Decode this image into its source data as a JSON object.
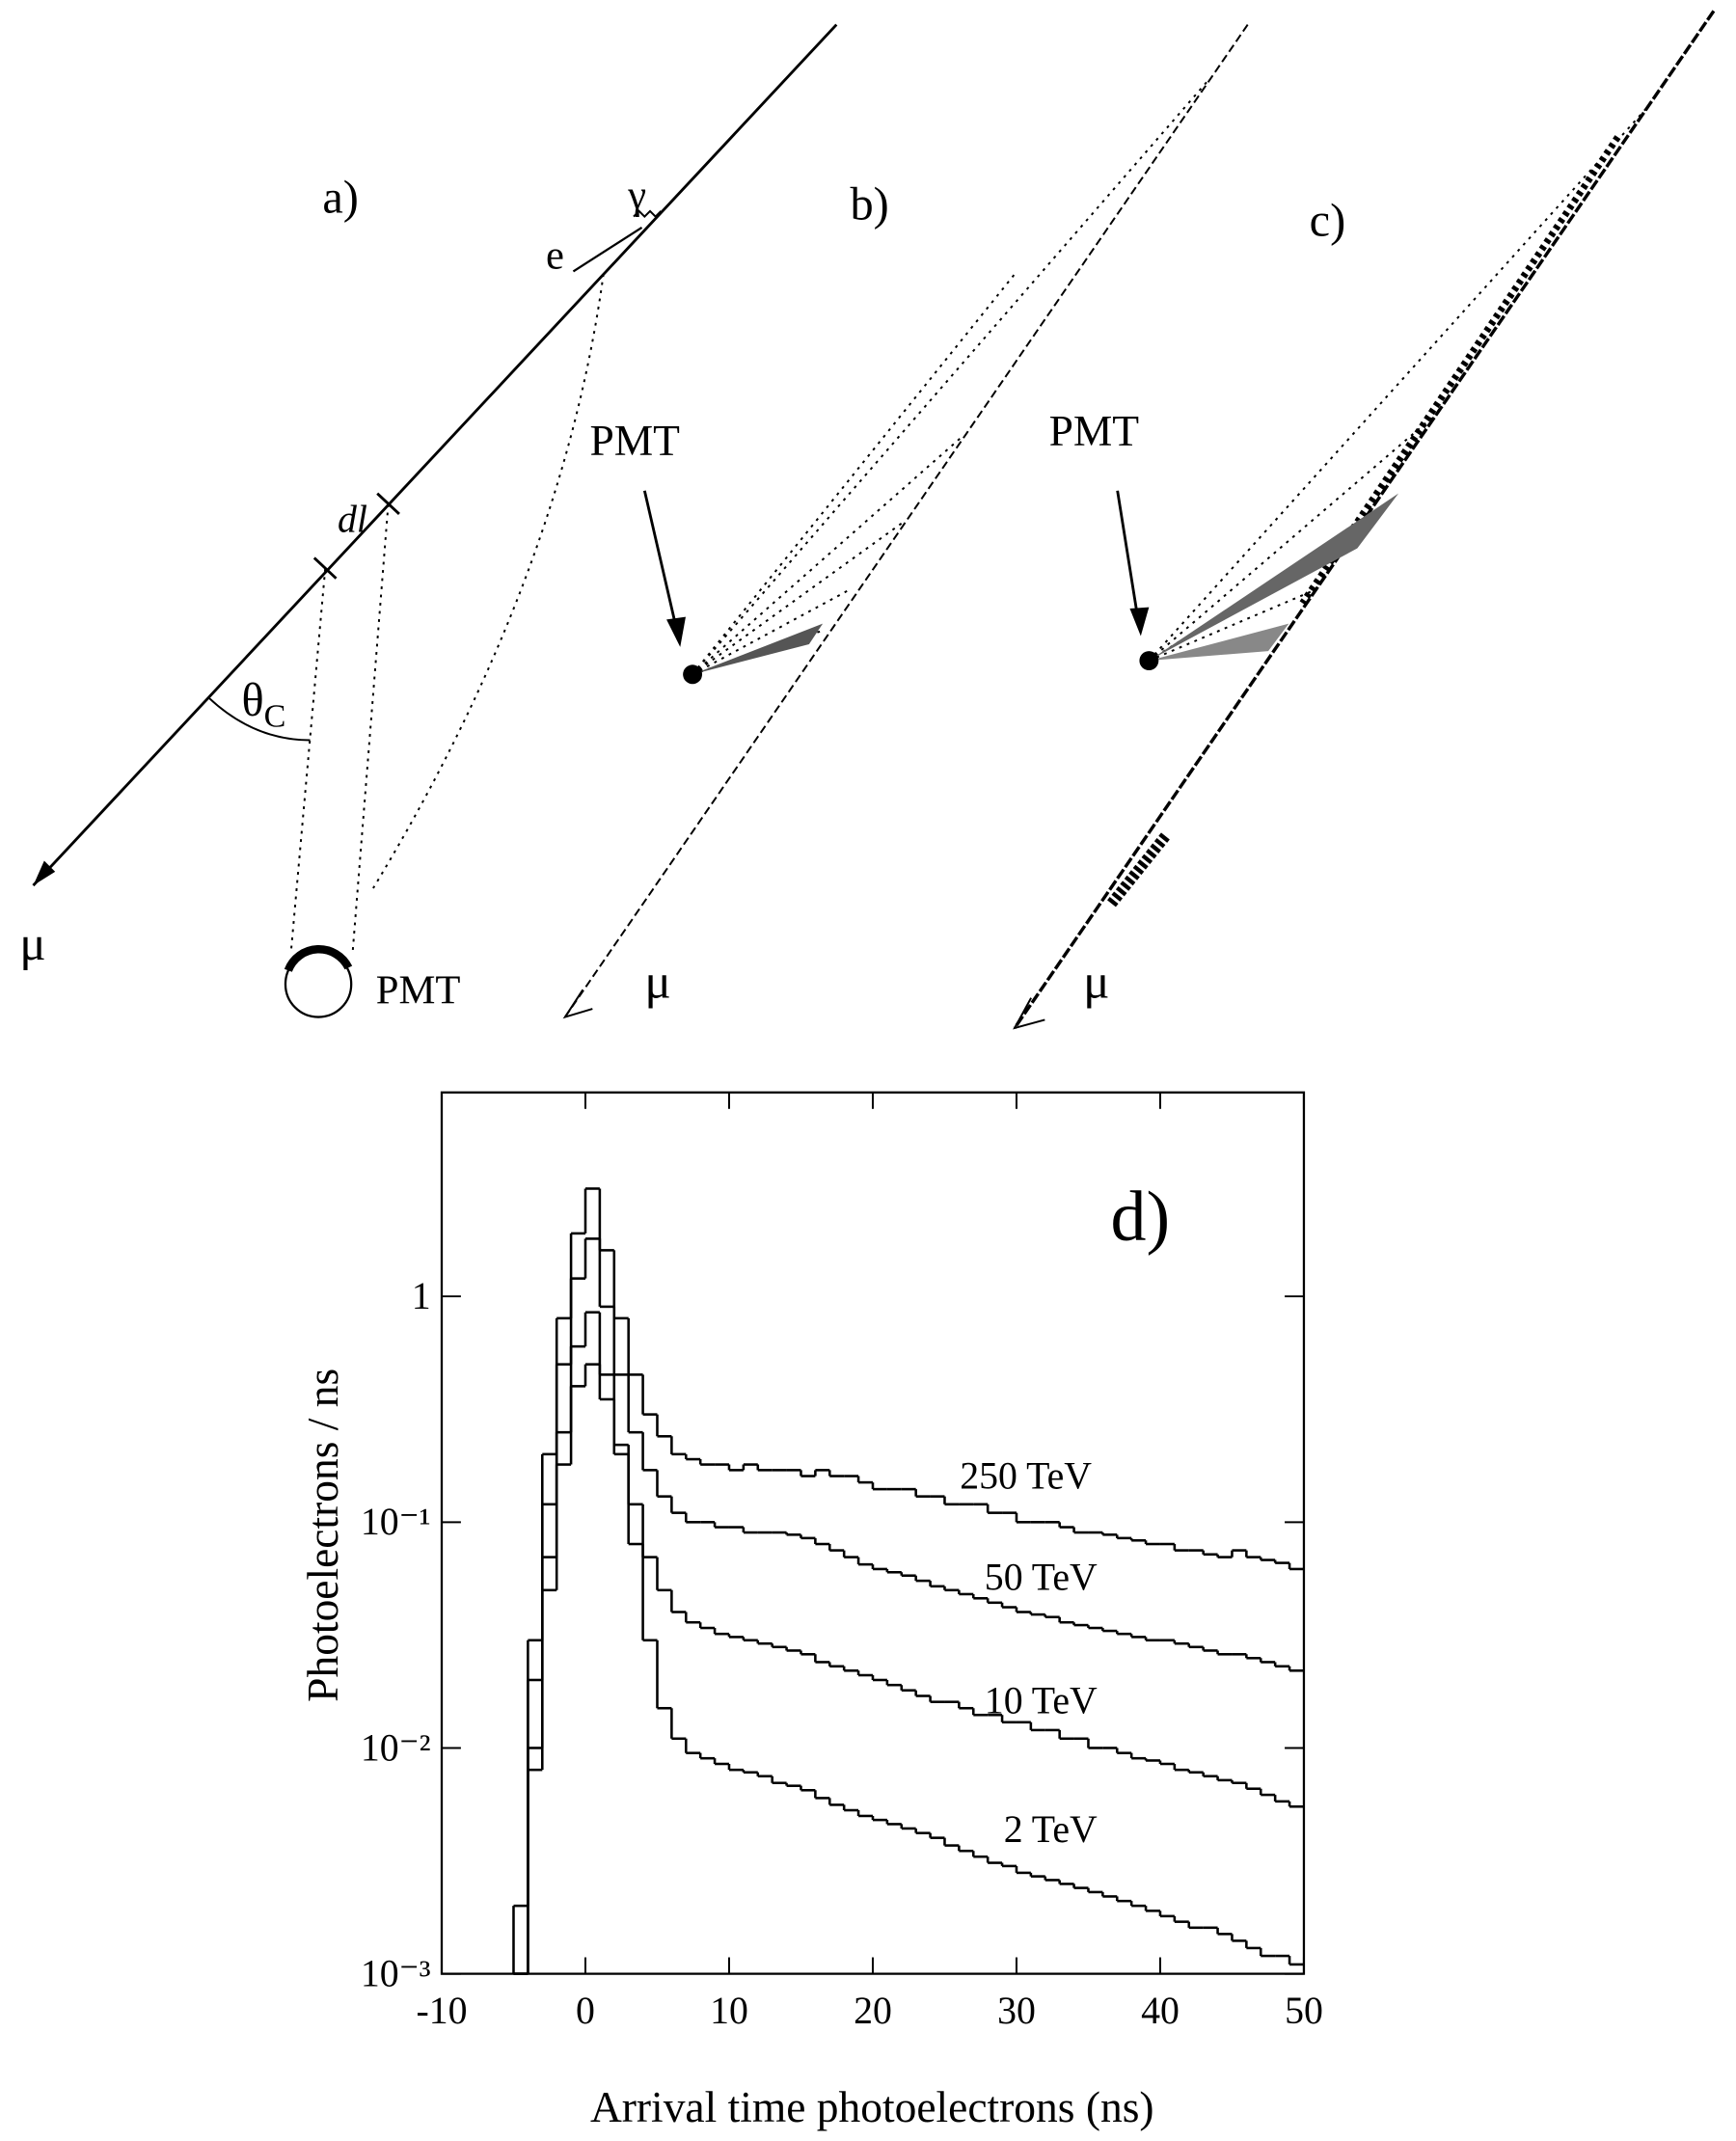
{
  "diagram": {
    "panels": [
      {
        "label": "a)",
        "electron": "e",
        "gamma": "γ",
        "segment": "dl",
        "angle": "θ",
        "angle_sub": "C",
        "muon": "μ",
        "pmt": "PMT"
      },
      {
        "label": "b)",
        "pmt": "PMT",
        "muon": "μ"
      },
      {
        "label": "c)",
        "pmt": "PMT",
        "muon": "μ"
      }
    ]
  },
  "chart_data": {
    "type": "histogram",
    "title": "d)",
    "xlabel": "Arrival time photoelectrons (ns)",
    "ylabel": "Photoelectrons / ns",
    "xlim": [
      -10,
      50
    ],
    "xticks": [
      -10,
      0,
      10,
      20,
      30,
      40,
      50
    ],
    "ylim": [
      0.001,
      8
    ],
    "log_y": true,
    "yticks": [
      {
        "value": 0.001,
        "label": "10⁻³"
      },
      {
        "value": 0.01,
        "label": "10⁻²"
      },
      {
        "value": 0.1,
        "label": "10⁻¹"
      },
      1
    ],
    "bins": [
      -5,
      -4,
      -3,
      -2,
      -1,
      0,
      1,
      2,
      3,
      4,
      5,
      6,
      7,
      8,
      9,
      10,
      11,
      12,
      13,
      14,
      15,
      16,
      17,
      18,
      19,
      20,
      21,
      22,
      23,
      24,
      25,
      26,
      27,
      28,
      29,
      30,
      31,
      32,
      33,
      34,
      35,
      36,
      37,
      38,
      39,
      40,
      41,
      42,
      43,
      44,
      45,
      46,
      47,
      48,
      49,
      50
    ],
    "series": [
      {
        "name": "250 TeV",
        "color": "#000000",
        "values": [
          0.002,
          0.03,
          0.2,
          0.8,
          1.9,
          3.0,
          1.6,
          0.8,
          0.45,
          0.3,
          0.24,
          0.2,
          0.19,
          0.18,
          0.18,
          0.17,
          0.18,
          0.17,
          0.17,
          0.17,
          0.16,
          0.17,
          0.16,
          0.16,
          0.15,
          0.14,
          0.14,
          0.14,
          0.13,
          0.13,
          0.12,
          0.12,
          0.12,
          0.11,
          0.11,
          0.1,
          0.1,
          0.1,
          0.095,
          0.09,
          0.09,
          0.088,
          0.085,
          0.083,
          0.08,
          0.08,
          0.075,
          0.075,
          0.072,
          0.07,
          0.075,
          0.07,
          0.068,
          0.066,
          0.062
        ]
      },
      {
        "name": "50 TeV",
        "color": "#000000",
        "values": [
          0.001,
          0.02,
          0.12,
          0.5,
          1.2,
          1.8,
          0.9,
          0.45,
          0.25,
          0.17,
          0.13,
          0.11,
          0.1,
          0.1,
          0.095,
          0.095,
          0.09,
          0.09,
          0.09,
          0.088,
          0.085,
          0.08,
          0.075,
          0.07,
          0.065,
          0.062,
          0.06,
          0.058,
          0.055,
          0.052,
          0.05,
          0.048,
          0.046,
          0.044,
          0.042,
          0.04,
          0.039,
          0.038,
          0.036,
          0.035,
          0.034,
          0.033,
          0.032,
          0.031,
          0.03,
          0.03,
          0.029,
          0.028,
          0.027,
          0.026,
          0.026,
          0.025,
          0.024,
          0.023,
          0.022
        ]
      },
      {
        "name": "10 TeV",
        "color": "#000000",
        "values": [
          0.001,
          0.01,
          0.07,
          0.25,
          0.6,
          0.85,
          0.45,
          0.22,
          0.12,
          0.07,
          0.05,
          0.04,
          0.036,
          0.034,
          0.032,
          0.031,
          0.03,
          0.029,
          0.028,
          0.027,
          0.026,
          0.024,
          0.023,
          0.022,
          0.021,
          0.02,
          0.019,
          0.018,
          0.017,
          0.016,
          0.016,
          0.015,
          0.014,
          0.014,
          0.013,
          0.013,
          0.012,
          0.012,
          0.011,
          0.011,
          0.01,
          0.01,
          0.0095,
          0.009,
          0.0088,
          0.0085,
          0.008,
          0.0078,
          0.0075,
          0.0072,
          0.007,
          0.0066,
          0.0062,
          0.0058,
          0.0055
        ]
      },
      {
        "name": "2 TeV",
        "color": "#000000",
        "values": [
          0.001,
          0.008,
          0.05,
          0.18,
          0.4,
          0.5,
          0.35,
          0.2,
          0.08,
          0.03,
          0.015,
          0.011,
          0.0095,
          0.009,
          0.0085,
          0.008,
          0.0078,
          0.0075,
          0.007,
          0.0068,
          0.0065,
          0.006,
          0.0056,
          0.0053,
          0.005,
          0.0048,
          0.0046,
          0.0044,
          0.0042,
          0.004,
          0.0037,
          0.0035,
          0.0033,
          0.0031,
          0.003,
          0.0028,
          0.0027,
          0.0026,
          0.0025,
          0.0024,
          0.0023,
          0.0022,
          0.0021,
          0.002,
          0.0019,
          0.0018,
          0.0017,
          0.0016,
          0.0016,
          0.0015,
          0.0014,
          0.0013,
          0.0012,
          0.0012,
          0.0011
        ]
      }
    ]
  }
}
